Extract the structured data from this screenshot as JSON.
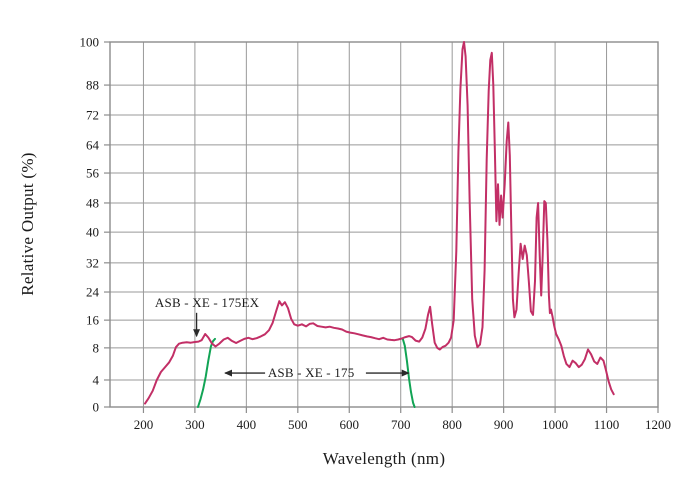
{
  "chart_data": {
    "type": "line",
    "title": "",
    "xlabel": "Wavelength (nm)",
    "ylabel": "Relative Output (%)",
    "grid": true,
    "background_color": "#ffffff",
    "grid_color": "#999999",
    "border_color": "#8c8c8c",
    "text_color": "#1c1c1c",
    "x_range": [
      135,
      1200
    ],
    "x_ticks": [
      {
        "label": "200",
        "nm": 200
      },
      {
        "label": "300",
        "nm": 300
      },
      {
        "label": "400",
        "nm": 400
      },
      {
        "label": "500",
        "nm": 500
      },
      {
        "label": "600",
        "nm": 600
      },
      {
        "label": "700",
        "nm": 700
      },
      {
        "label": "800",
        "nm": 800
      },
      {
        "label": "900",
        "nm": 900
      },
      {
        "label": "1000",
        "nm": 1000
      },
      {
        "label": "1100",
        "nm": 1100
      },
      {
        "label": "1200",
        "nm": 1200
      }
    ],
    "y_axis_anchors": [
      {
        "value": 0,
        "fraction": 0.0
      },
      {
        "value": 4,
        "fraction": 0.074
      },
      {
        "value": 8,
        "fraction": 0.162
      },
      {
        "value": 16,
        "fraction": 0.238
      },
      {
        "value": 24,
        "fraction": 0.315
      },
      {
        "value": 32,
        "fraction": 0.395
      },
      {
        "value": 40,
        "fraction": 0.479
      },
      {
        "value": 48,
        "fraction": 0.559
      },
      {
        "value": 56,
        "fraction": 0.641
      },
      {
        "value": 64,
        "fraction": 0.718
      },
      {
        "value": 72,
        "fraction": 0.8
      },
      {
        "value": 88,
        "fraction": 0.882
      },
      {
        "value": 100,
        "fraction": 1.0
      }
    ],
    "series": [
      {
        "name": "xenon-lamp-spectrum",
        "color": "#c22f66",
        "width": 2,
        "points": [
          [
            203,
            0.5
          ],
          [
            210,
            1.3
          ],
          [
            218,
            2.4
          ],
          [
            226,
            4
          ],
          [
            234,
            5
          ],
          [
            242,
            5.6
          ],
          [
            250,
            6.2
          ],
          [
            257,
            7
          ],
          [
            263,
            8.2
          ],
          [
            269,
            9.2
          ],
          [
            276,
            9.5
          ],
          [
            284,
            9.6
          ],
          [
            292,
            9.5
          ],
          [
            300,
            9.7
          ],
          [
            307,
            9.8
          ],
          [
            313,
            10.2
          ],
          [
            320,
            12
          ],
          [
            326,
            11
          ],
          [
            333,
            9.3
          ],
          [
            340,
            8.4
          ],
          [
            348,
            9.3
          ],
          [
            356,
            10.4
          ],
          [
            364,
            10.9
          ],
          [
            372,
            10
          ],
          [
            380,
            9.4
          ],
          [
            388,
            10
          ],
          [
            396,
            10.6
          ],
          [
            404,
            10.9
          ],
          [
            412,
            10.5
          ],
          [
            420,
            10.8
          ],
          [
            428,
            11.3
          ],
          [
            436,
            11.9
          ],
          [
            444,
            13.1
          ],
          [
            451,
            15.2
          ],
          [
            458,
            18.6
          ],
          [
            464,
            21.4
          ],
          [
            469,
            20.2
          ],
          [
            475,
            21.1
          ],
          [
            481,
            19.4
          ],
          [
            487,
            16.4
          ],
          [
            493,
            14.8
          ],
          [
            500,
            14.4
          ],
          [
            508,
            14.8
          ],
          [
            516,
            14.2
          ],
          [
            523,
            14.9
          ],
          [
            530,
            15.1
          ],
          [
            538,
            14.3
          ],
          [
            546,
            14.1
          ],
          [
            554,
            13.9
          ],
          [
            562,
            14.1
          ],
          [
            570,
            13.8
          ],
          [
            578,
            13.6
          ],
          [
            586,
            13.3
          ],
          [
            594,
            12.7
          ],
          [
            602,
            12.4
          ],
          [
            610,
            12.2
          ],
          [
            618,
            11.9
          ],
          [
            626,
            11.6
          ],
          [
            634,
            11.3
          ],
          [
            642,
            11.1
          ],
          [
            650,
            10.8
          ],
          [
            658,
            10.5
          ],
          [
            666,
            10.9
          ],
          [
            674,
            10.4
          ],
          [
            681,
            10.3
          ],
          [
            688,
            10.2
          ],
          [
            695,
            10.4
          ],
          [
            702,
            10.7
          ],
          [
            709,
            11.1
          ],
          [
            716,
            11.4
          ],
          [
            722,
            11.1
          ],
          [
            729,
            10.1
          ],
          [
            736,
            9.8
          ],
          [
            742,
            11
          ],
          [
            748,
            13.5
          ],
          [
            753,
            17.5
          ],
          [
            757,
            19.8
          ],
          [
            761,
            15
          ],
          [
            766,
            9.5
          ],
          [
            771,
            8
          ],
          [
            776,
            7.8
          ],
          [
            782,
            8.3
          ],
          [
            787,
            8.6
          ],
          [
            793,
            9.5
          ],
          [
            798,
            11
          ],
          [
            803,
            16
          ],
          [
            808,
            35
          ],
          [
            812,
            62
          ],
          [
            816,
            86
          ],
          [
            820,
            98
          ],
          [
            823,
            100
          ],
          [
            826,
            96
          ],
          [
            830,
            77
          ],
          [
            834,
            48
          ],
          [
            839,
            22
          ],
          [
            844,
            11.5
          ],
          [
            849,
            8.2
          ],
          [
            854,
            9
          ],
          [
            859,
            14
          ],
          [
            863,
            30
          ],
          [
            867,
            60
          ],
          [
            871,
            85
          ],
          [
            874,
            95
          ],
          [
            877,
            97
          ],
          [
            880,
            88
          ],
          [
            883,
            62
          ],
          [
            886,
            43
          ],
          [
            889,
            53
          ],
          [
            892,
            42
          ],
          [
            895,
            50
          ],
          [
            898,
            44
          ],
          [
            902,
            53
          ],
          [
            906,
            65
          ],
          [
            909,
            70
          ],
          [
            912,
            61
          ],
          [
            915,
            40
          ],
          [
            918,
            22
          ],
          [
            921,
            16.8
          ],
          [
            925,
            19
          ],
          [
            929,
            29
          ],
          [
            933,
            37
          ],
          [
            937,
            33
          ],
          [
            941,
            36.5
          ],
          [
            945,
            34
          ],
          [
            949,
            27
          ],
          [
            953,
            18.5
          ],
          [
            957,
            17.5
          ],
          [
            961,
            27
          ],
          [
            964,
            44
          ],
          [
            967,
            48
          ],
          [
            970,
            34
          ],
          [
            973,
            23
          ],
          [
            976,
            34
          ],
          [
            979,
            48.5
          ],
          [
            982,
            48
          ],
          [
            985,
            38
          ],
          [
            988,
            23
          ],
          [
            990,
            18
          ],
          [
            992,
            19
          ],
          [
            995,
            17
          ],
          [
            998,
            14.5
          ],
          [
            1002,
            12
          ],
          [
            1007,
            10.5
          ],
          [
            1012,
            8.6
          ],
          [
            1017,
            7
          ],
          [
            1022,
            6
          ],
          [
            1028,
            5.6
          ],
          [
            1034,
            6.4
          ],
          [
            1040,
            6.1
          ],
          [
            1046,
            5.6
          ],
          [
            1052,
            5.9
          ],
          [
            1058,
            6.6
          ],
          [
            1064,
            7.8
          ],
          [
            1070,
            7.2
          ],
          [
            1076,
            6.3
          ],
          [
            1082,
            6
          ],
          [
            1088,
            6.8
          ],
          [
            1094,
            6.4
          ],
          [
            1099,
            5.2
          ],
          [
            1104,
            3.8
          ],
          [
            1109,
            2.6
          ],
          [
            1114,
            1.9
          ]
        ]
      },
      {
        "name": "asb-xe-175-lower-cutoff",
        "color": "#12a455",
        "width": 2,
        "points": [
          [
            306,
            0
          ],
          [
            311,
            1.2
          ],
          [
            316,
            2.6
          ],
          [
            321,
            4.4
          ],
          [
            326,
            6.4
          ],
          [
            331,
            8.4
          ],
          [
            335,
            9.9
          ],
          [
            339,
            10.6
          ]
        ]
      },
      {
        "name": "asb-xe-175-upper-cutoff",
        "color": "#12a455",
        "width": 2,
        "points": [
          [
            704,
            10.6
          ],
          [
            708,
            8.6
          ],
          [
            712,
            6.4
          ],
          [
            716,
            4.2
          ],
          [
            720,
            2.2
          ],
          [
            724,
            0.6
          ],
          [
            727,
            0
          ]
        ]
      }
    ],
    "annotations": [
      {
        "id": "label-asb-xe-175ex",
        "text": "ASB - XE - 175EX",
        "text_fx": 0.082,
        "text_fy": 0.726,
        "anchor": "start",
        "arrows": [
          {
            "x1": 0.158,
            "y1": 0.742,
            "x2": 0.158,
            "y2": 0.806
          }
        ]
      },
      {
        "id": "label-asb-xe-175",
        "text": "ASB - XE - 175",
        "text_fx": 0.288,
        "text_fy": 0.918,
        "anchor": "start",
        "arrows": [
          {
            "x1": 0.283,
            "y1": 0.907,
            "x2": 0.21,
            "y2": 0.907
          },
          {
            "x1": 0.467,
            "y1": 0.907,
            "x2": 0.545,
            "y2": 0.907
          }
        ]
      }
    ],
    "annotation_color": "#2a2a2a"
  }
}
